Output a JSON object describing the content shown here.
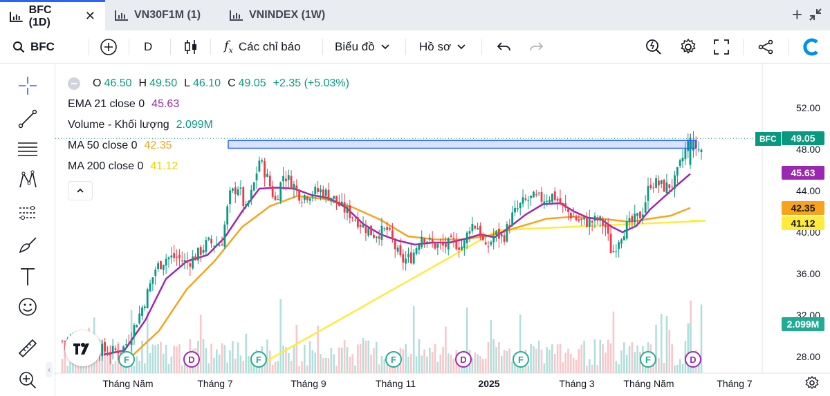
{
  "tabs": [
    {
      "label": "BFC (1D)",
      "active": true
    },
    {
      "label": "VN30F1M (1)",
      "active": false
    },
    {
      "label": "VNINDEX (1W)",
      "active": false
    }
  ],
  "toolbar": {
    "symbol": "BFC",
    "interval": "D",
    "indicators_label": "Các chỉ báo",
    "chart_type_label": "Biểu đồ",
    "profile_label": "Hồ sơ"
  },
  "legend": {
    "ohlc": {
      "o_label": "O",
      "o": "46.50",
      "h_label": "H",
      "h": "49.50",
      "l_label": "L",
      "l": "46.10",
      "c_label": "C",
      "c": "49.05",
      "change": "+2.35 (+5.03%)"
    },
    "ema": {
      "label": "EMA 21 close 0",
      "value": "45.63"
    },
    "volume": {
      "label": "Volume - Khối lượng",
      "value": "2.099M"
    },
    "ma50": {
      "label": "MA 50 close 0",
      "value": "42.35"
    },
    "ma200": {
      "label": "MA 200 close 0",
      "value": "41.12"
    }
  },
  "price_scale": {
    "ticks": [
      "52.00",
      "48.00",
      "44.00",
      "40.00",
      "36.00",
      "32.00",
      "28.00"
    ],
    "badges": {
      "symbol": "BFC",
      "last": "49.05",
      "ema": "45.63",
      "ma50": "42.35",
      "ma200": "41.12",
      "volume": "2.099M"
    }
  },
  "time_scale": {
    "ticks": [
      "Tháng Năm",
      "Tháng 7",
      "Tháng 9",
      "Tháng 11",
      "2025",
      "Tháng 3",
      "Tháng Năm",
      "Tháng 7"
    ]
  },
  "events": [
    "F",
    "D",
    "F",
    "F",
    "D",
    "F",
    "F",
    "D"
  ],
  "colors": {
    "up": "#089981",
    "down": "#f23645",
    "ema": "#9c27b0",
    "ma50": "#f7a31c",
    "ma200": "#ffeb3b",
    "rectangle": "#2962ff",
    "volume_up": "#b2dfdb",
    "volume_down": "#f8c7ca"
  },
  "chart_data": {
    "type": "candlestick",
    "title": "",
    "ylim": [
      27,
      53
    ],
    "series": [
      {
        "name": "EMA 21 close 0",
        "last": 45.63
      },
      {
        "name": "MA 50 close 0",
        "last": 42.35
      },
      {
        "name": "MA 200 close 0",
        "last": 41.12
      },
      {
        "name": "Volume - Khối lượng",
        "last": "2.099M"
      }
    ],
    "last_close": 49.05,
    "highlight_zone": [
      48.1,
      48.85
    ]
  }
}
